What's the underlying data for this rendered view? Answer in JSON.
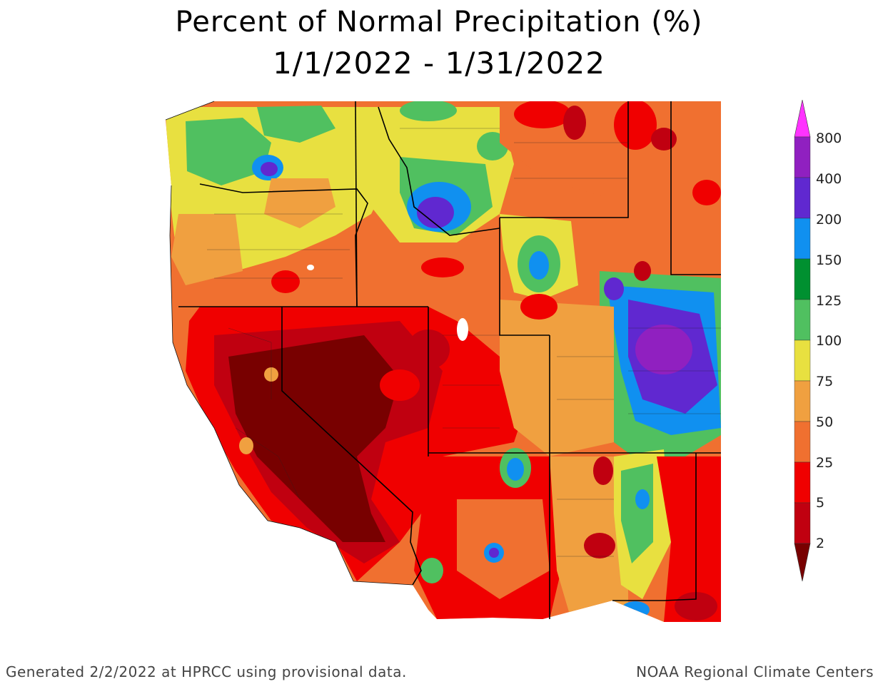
{
  "title": {
    "line1": "Percent of Normal Precipitation (%)",
    "line2": "1/1/2022 - 1/31/2022"
  },
  "legend": {
    "labels": [
      "800",
      "400",
      "200",
      "150",
      "125",
      "100",
      "75",
      "50",
      "25",
      "5",
      "2"
    ],
    "colors": {
      "over800": "#ff33ff",
      "c400_800": "#9020c0",
      "c200_400": "#6028d0",
      "c150_200": "#1090f0",
      "c125_150": "#009030",
      "c100_125": "#50c060",
      "c75_100": "#e8e040",
      "c50_75": "#f0a040",
      "c25_50": "#f07030",
      "c5_25": "#f00000",
      "c2_5": "#c00010",
      "under2": "#780000"
    }
  },
  "footer": {
    "generated": "Generated 2/2/2022 at HPRCC using provisional data.",
    "source": "NOAA Regional Climate Centers"
  }
}
